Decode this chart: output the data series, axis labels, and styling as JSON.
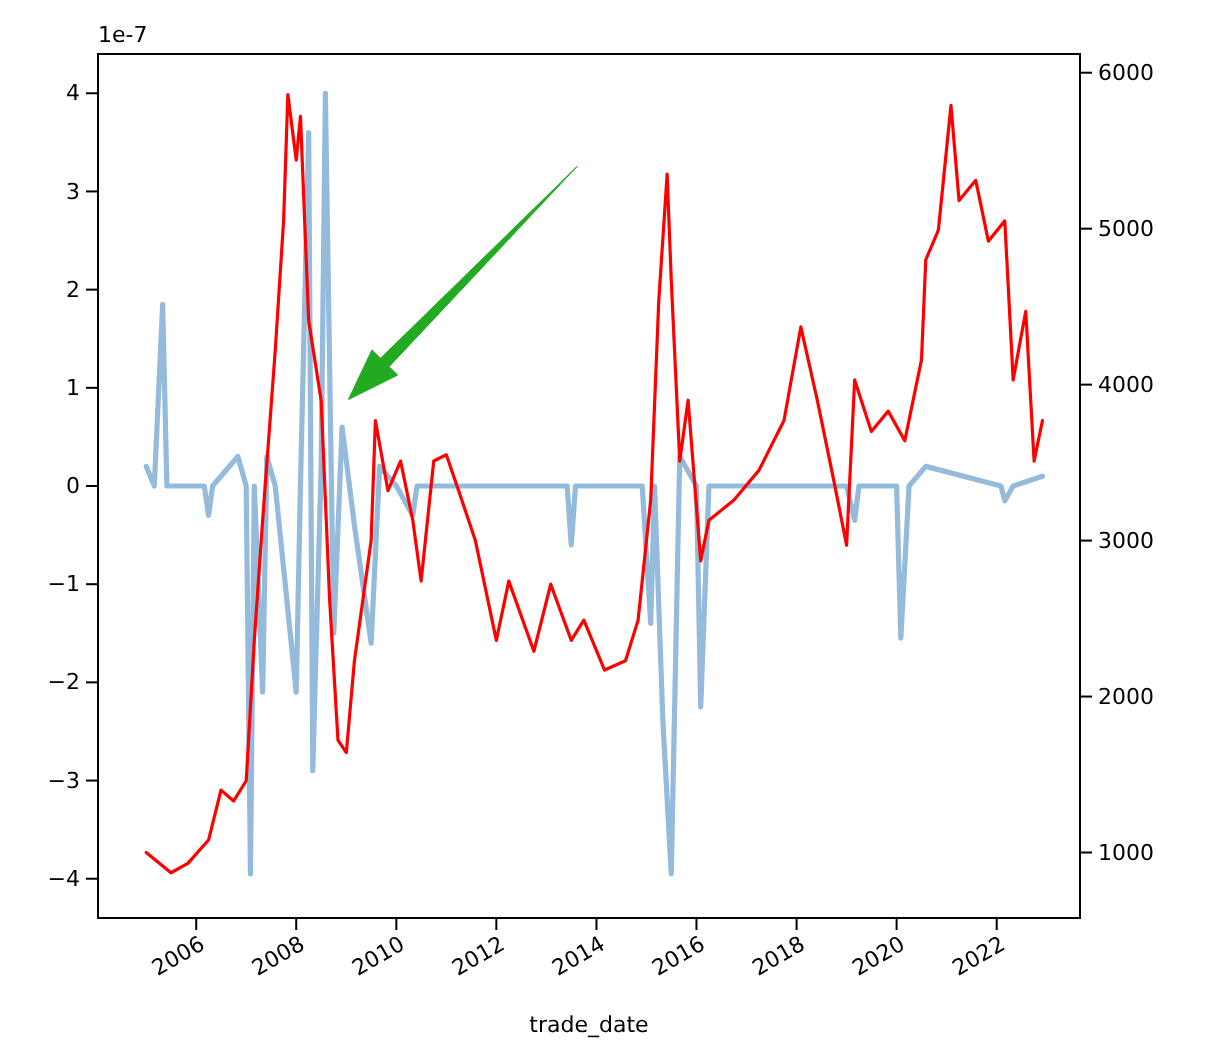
{
  "chart_data": {
    "type": "line",
    "xlabel": "trade_date",
    "annotations": [
      "1e-7"
    ],
    "xlim": [
      "2004-01-15",
      "2023-09-01"
    ],
    "xticks": [
      {
        "value": "2006-01-01",
        "label": "2006"
      },
      {
        "value": "2008-01-01",
        "label": "2008"
      },
      {
        "value": "2010-01-01",
        "label": "2010"
      },
      {
        "value": "2012-01-01",
        "label": "2012"
      },
      {
        "value": "2014-01-01",
        "label": "2014"
      },
      {
        "value": "2016-01-01",
        "label": "2016"
      },
      {
        "value": "2018-01-01",
        "label": "2018"
      },
      {
        "value": "2020-01-01",
        "label": "2020"
      },
      {
        "value": "2022-01-01",
        "label": "2022"
      }
    ],
    "ylim": [
      -4.4,
      4.4
    ],
    "yticks": [
      -4,
      -3,
      -2,
      -1,
      0,
      1,
      2,
      3,
      4
    ],
    "y2lim": [
      580,
      6120
    ],
    "y2ticks": [
      1000,
      2000,
      3000,
      4000,
      5000,
      6000
    ],
    "line_style": "solid",
    "series": [
      {
        "color": "#94bbdc",
        "axis": "y",
        "x": [
          "2005-01",
          "2005-03",
          "2005-05",
          "2005-06",
          "2006-03",
          "2006-04",
          "2006-05",
          "2006-11",
          "2007-01",
          "2007-02",
          "2007-03",
          "2007-05",
          "2007-06",
          "2007-08",
          "2008-01",
          "2008-02",
          "2008-04",
          "2008-05",
          "2008-07",
          "2008-08",
          "2008-10",
          "2008-12",
          "2009-03",
          "2009-07",
          "2009-09",
          "2010-01",
          "2010-05",
          "2010-06",
          "2013-06",
          "2013-07",
          "2013-08",
          "2014-12",
          "2015-02",
          "2015-03",
          "2015-05",
          "2015-07",
          "2015-09",
          "2016-01",
          "2016-02",
          "2016-04",
          "2019-01",
          "2019-03",
          "2019-04",
          "2020-01",
          "2020-02",
          "2020-04",
          "2020-08",
          "2022-02",
          "2022-03",
          "2022-05",
          "2022-12"
        ],
        "values": [
          0.2,
          0,
          1.85,
          0,
          0,
          -0.3,
          0,
          0.3,
          0,
          -3.95,
          0,
          -2.1,
          0.3,
          0,
          -2.1,
          0,
          3.6,
          -2.9,
          0.2,
          4.0,
          -1.5,
          0.6,
          -0.4,
          -1.6,
          0.2,
          0,
          -0.3,
          0,
          0,
          -0.6,
          0,
          0,
          -1.4,
          0,
          -2.4,
          -3.95,
          0.3,
          0,
          -2.25,
          0,
          0,
          -0.35,
          0,
          0,
          -1.55,
          0,
          0.2,
          0,
          -0.15,
          0,
          0.1
        ]
      },
      {
        "color": "#ff0000",
        "axis": "y2",
        "x": [
          "2005-01",
          "2005-07",
          "2005-11",
          "2006-04",
          "2006-07",
          "2006-10",
          "2007-01",
          "2007-03",
          "2007-05",
          "2007-08",
          "2007-10",
          "2007-11",
          "2008-01",
          "2008-02",
          "2008-04",
          "2008-07",
          "2008-09",
          "2008-11",
          "2009-01",
          "2009-03",
          "2009-07",
          "2009-08",
          "2009-11",
          "2010-02",
          "2010-05",
          "2010-07",
          "2010-10",
          "2011-01",
          "2011-04",
          "2011-08",
          "2012-01",
          "2012-04",
          "2012-10",
          "2013-02",
          "2013-07",
          "2013-10",
          "2014-03",
          "2014-08",
          "2014-11",
          "2015-02",
          "2015-04",
          "2015-06",
          "2015-07",
          "2015-09",
          "2015-11",
          "2016-02",
          "2016-04",
          "2016-10",
          "2017-04",
          "2017-10",
          "2018-02",
          "2018-06",
          "2018-10",
          "2019-01",
          "2019-03",
          "2019-07",
          "2019-11",
          "2020-03",
          "2020-07",
          "2020-08",
          "2020-11",
          "2021-02",
          "2021-04",
          "2021-08",
          "2021-11",
          "2022-03",
          "2022-05",
          "2022-08",
          "2022-10",
          "2022-12"
        ],
        "values": [
          1000,
          870,
          930,
          1080,
          1400,
          1330,
          1460,
          2360,
          3130,
          4220,
          5050,
          5860,
          5440,
          5720,
          4410,
          3900,
          2620,
          1720,
          1640,
          2230,
          3000,
          3770,
          3320,
          3510,
          3130,
          2740,
          3510,
          3550,
          3320,
          3000,
          2360,
          2740,
          2290,
          2720,
          2360,
          2490,
          2170,
          2230,
          2490,
          3260,
          4540,
          5350,
          4670,
          3510,
          3900,
          2870,
          3130,
          3260,
          3450,
          3770,
          4370,
          3900,
          3380,
          2970,
          4030,
          3700,
          3830,
          3640,
          4160,
          4800,
          4990,
          5790,
          5180,
          5310,
          4920,
          5050,
          4030,
          4470,
          3510,
          3770
        ]
      }
    ]
  }
}
